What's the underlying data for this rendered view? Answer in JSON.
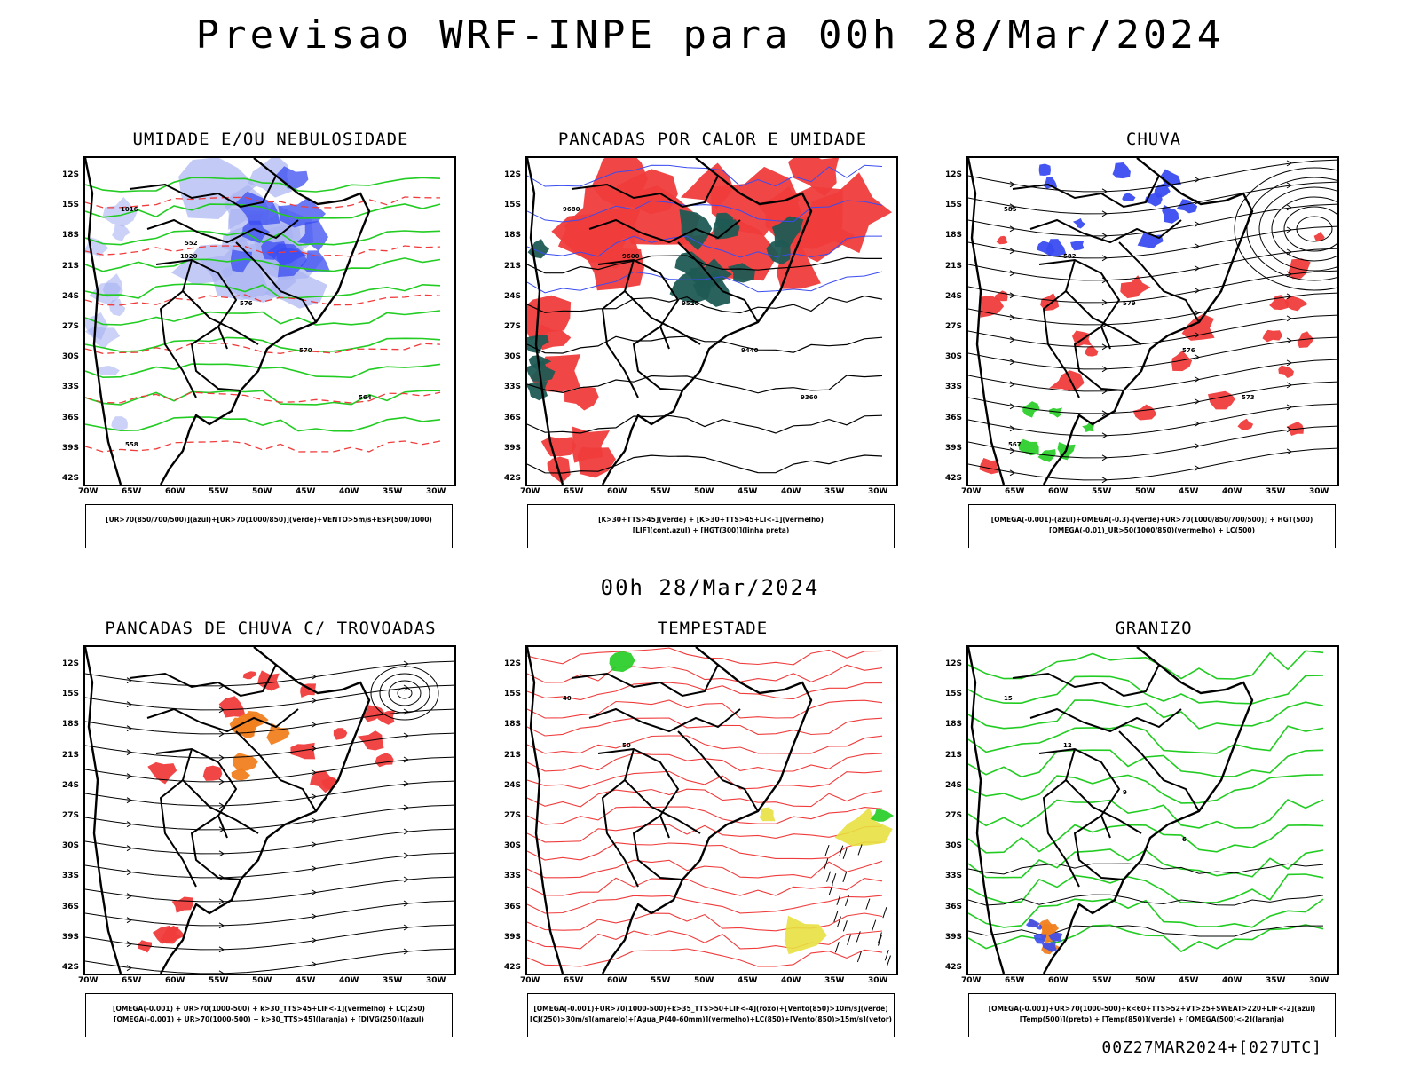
{
  "header": {
    "title": "Previsao WRF-INPE  para 00h 28/Mar/2024"
  },
  "middle": {
    "subtitle": "00h 28/Mar/2024"
  },
  "footer": {
    "run_label": "00Z27MAR2024+[027UTC]"
  },
  "axes": {
    "lat_labels": [
      "12S",
      "15S",
      "18S",
      "21S",
      "24S",
      "27S",
      "30S",
      "33S",
      "36S",
      "39S",
      "42S"
    ],
    "lon_labels": [
      "70W",
      "65W",
      "60W",
      "55W",
      "50W",
      "45W",
      "40W",
      "35W",
      "30W"
    ]
  },
  "panels": [
    {
      "title": "UMIDADE E/OU NEBULOSIDADE",
      "legend_line1": "[UR>70(850/700/500)](azul)+[UR>70(1000/850)](verde)+VENTO>5m/s+ESP(500/1000)",
      "legend_line2": "",
      "contour_labels": [
        "1016",
        "1020",
        "576",
        "570",
        "564",
        "558",
        "552"
      ]
    },
    {
      "title": "PANCADAS POR CALOR E UMIDADE",
      "legend_line1": "[K>30+TTS>45](verde) + [K>30+TTS>45+LI<-1](vermelho)",
      "legend_line2": "[LIF](cont.azul) + [HGT(300)](linha preta)",
      "contour_labels": [
        "9680",
        "9600",
        "9520",
        "9440",
        "9360"
      ]
    },
    {
      "title": "CHUVA",
      "legend_line1": "[OMEGA(-0.001)-(azul)+OMEGA(-0.3)-(verde)+UR>70(1000/850/700/500)] + HGT(500)",
      "legend_line2": "[OMEGA(-0.01)_UR>50(1000/850)(vermelho) + LC(500)",
      "contour_labels": [
        "585",
        "582",
        "579",
        "576",
        "573",
        "567"
      ]
    },
    {
      "title": "PANCADAS DE CHUVA C/ TROVOADAS",
      "legend_line1": "[OMEGA(-0.001) + UR>70(1000-500) + k>30_TTS>45+LIF<-1](vermelho) + LC(250)",
      "legend_line2": "[OMEGA(-0.001) + UR>70(1000-500) + k>30_TTS>45](laranja) + [DIVG(250)](azul)",
      "contour_labels": []
    },
    {
      "title": "TEMPESTADE",
      "legend_line1": "[OMEGA(-0.001)+UR>70(1000-500)+k>35_TTS>50+LIF<-4](roxo)+[Vento(850)>10m/s](verde)",
      "legend_line2": "[CJ(250)>30m/s](amarelo)+[Agua_P(40-60mm)](vermelho)+LC(850)+[Vento(850)>15m/s](vetor)",
      "contour_labels": [
        "40",
        "50"
      ]
    },
    {
      "title": "GRANIZO",
      "legend_line1": "[OMEGA(-0.001)+UR>70(1000-500)+k<60+TTS>52+VT>25+SWEAT>220+LIF<-2](azul)",
      "legend_line2": "[Temp(500)](preto) + [Temp(850)](verde) + [OMEGA(500)<-2](laranja)",
      "contour_labels": [
        "15",
        "12",
        "9",
        "6"
      ]
    }
  ],
  "colors": {
    "blue": "#3a4cf0",
    "lightblue": "#a9b3f2",
    "green": "#22cc22",
    "red": "#f03c3c",
    "darkteal": "#1f5a54",
    "orange": "#f08020",
    "yellow": "#e8e040",
    "purple": "#b030d0"
  }
}
